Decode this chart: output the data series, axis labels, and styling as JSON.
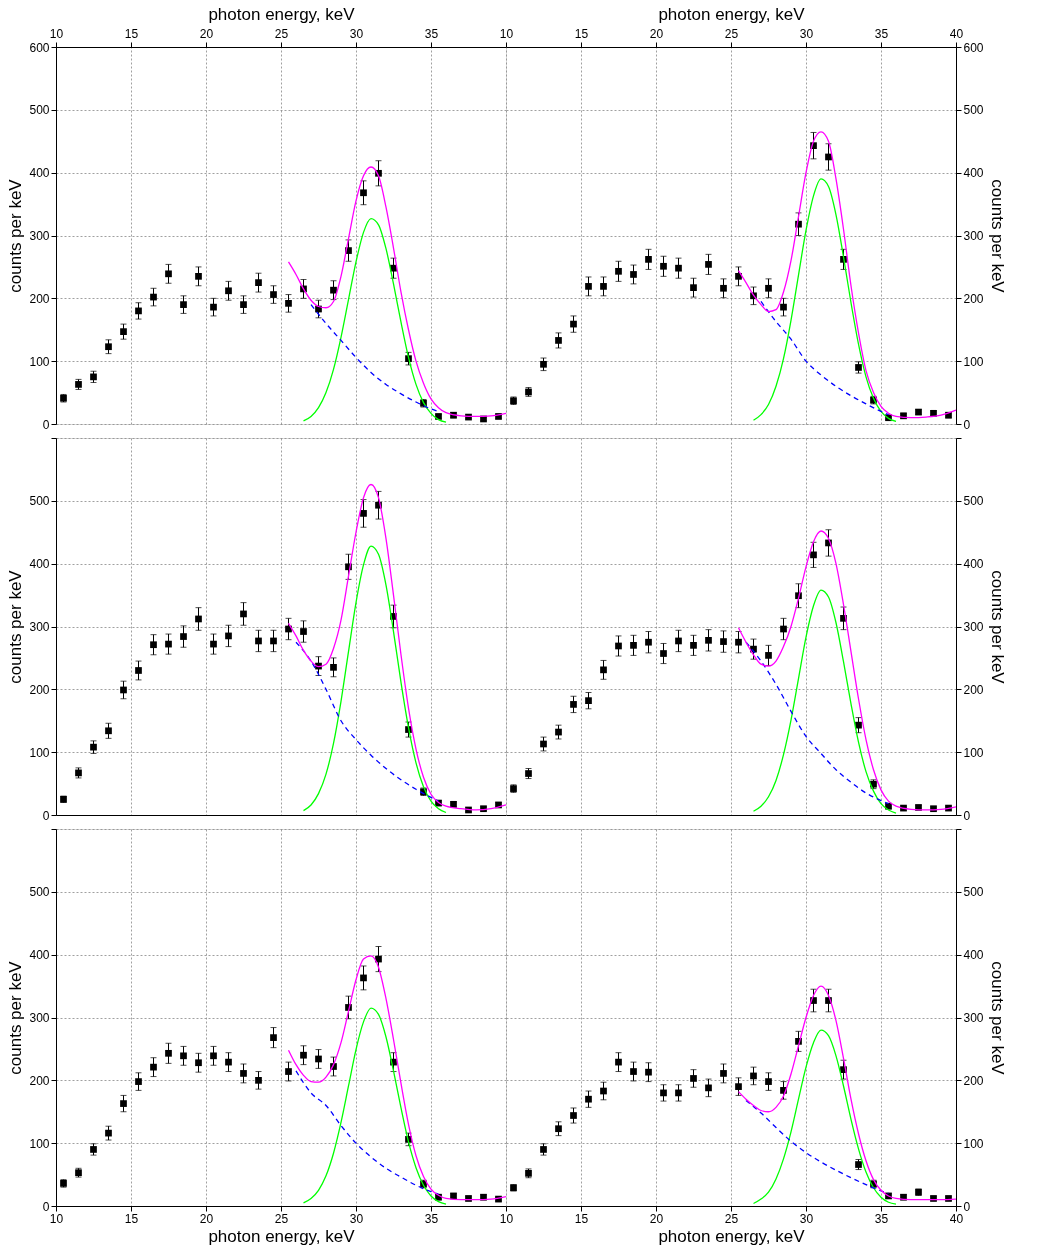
{
  "chart_data": [
    {
      "type": "scatter",
      "x": [
        10.5,
        11.5,
        12.5,
        13.5,
        14.5,
        15.5,
        16.5,
        17.5,
        18.5,
        19.5,
        20.5,
        21.5,
        22.5,
        23.5,
        24.5,
        25.5,
        26.5,
        27.5,
        28.5,
        29.5,
        30.5,
        31.5,
        32.5,
        33.5,
        34.5,
        35.5,
        36.5,
        37.5,
        38.5,
        39.5
      ],
      "xlim": [
        10,
        40
      ],
      "xticks": [
        10,
        15,
        20,
        25,
        30,
        35
      ],
      "xlabel": "photon energy, keV",
      "ylim": [
        0,
        600
      ],
      "yticks": [
        0,
        100,
        200,
        300,
        400,
        500,
        600
      ],
      "ylabel": "counts per keV",
      "grid": true,
      "series": [
        {
          "marker": "square",
          "color": "#000000",
          "values": [
            41,
            63,
            75,
            123,
            147,
            180,
            202,
            239,
            190,
            235,
            186,
            212,
            190,
            225,
            206,
            192,
            215,
            183,
            213,
            276,
            368,
            399,
            248,
            104,
            33,
            12,
            14,
            11,
            8,
            12
          ],
          "errors": [
            6,
            8,
            9,
            11,
            12,
            13,
            14,
            15,
            14,
            15,
            14,
            15,
            14,
            15,
            14,
            14,
            15,
            14,
            15,
            17,
            19,
            20,
            16,
            10,
            6,
            3,
            4,
            3,
            3,
            3
          ]
        },
        {
          "type": "line",
          "color": "#00ff00",
          "x": [
            26.5,
            27,
            27.5,
            28,
            28.5,
            29,
            29.5,
            30,
            30.5,
            31,
            31.5,
            32,
            32.5,
            33,
            33.5,
            34,
            34.5,
            35,
            35.5,
            36
          ],
          "values": [
            5,
            12,
            26,
            50,
            87,
            138,
            198,
            258,
            305,
            327,
            317,
            279,
            223,
            162,
            106,
            63,
            34,
            17,
            7,
            3
          ]
        },
        {
          "type": "line",
          "color": "#0000ff",
          "line_style": "dashed",
          "x": [
            27,
            28,
            29,
            30,
            31,
            32,
            33,
            34,
            35,
            35.5
          ],
          "values": [
            190,
            160,
            133,
            106,
            82,
            63,
            48,
            35,
            24,
            20
          ]
        },
        {
          "type": "line",
          "color": "#ff00ff",
          "x": [
            25.5,
            26,
            26.5,
            27,
            27.5,
            28,
            28.5,
            29,
            29.5,
            30,
            30.5,
            31,
            31.5,
            32,
            32.5,
            33,
            33.5,
            34,
            34.5,
            35,
            35.5,
            36,
            37,
            38,
            39,
            40
          ],
          "values": [
            258,
            238,
            215,
            197,
            187,
            185,
            195,
            235,
            295,
            355,
            395,
            409,
            395,
            345,
            280,
            210,
            150,
            100,
            65,
            40,
            26,
            18,
            13,
            12,
            13,
            17
          ]
        }
      ]
    },
    {
      "type": "scatter",
      "x": [
        10.5,
        11.5,
        12.5,
        13.5,
        14.5,
        15.5,
        16.5,
        17.5,
        18.5,
        19.5,
        20.5,
        21.5,
        22.5,
        23.5,
        24.5,
        25.5,
        26.5,
        27.5,
        28.5,
        29.5,
        30.5,
        31.5,
        32.5,
        33.5,
        34.5,
        35.5,
        36.5,
        37.5,
        38.5,
        39.5
      ],
      "xlim": [
        10,
        40
      ],
      "xticks": [
        10,
        15,
        20,
        25,
        30,
        35,
        40
      ],
      "xlabel": "photon energy, keV",
      "y2lim": [
        0,
        600
      ],
      "y2ticks": [
        0,
        100,
        200,
        300,
        400,
        500,
        600
      ],
      "y2label": "counts per keV",
      "grid": true,
      "series": [
        {
          "axis": "y2",
          "marker": "square",
          "color": "#000000",
          "values": [
            37,
            51,
            95,
            133,
            159,
            219,
            219,
            243,
            238,
            262,
            251,
            248,
            217,
            254,
            216,
            235,
            204,
            216,
            186,
            318,
            443,
            425,
            262,
            90,
            38,
            10,
            13,
            19,
            17,
            14
          ],
          "errors": [
            6,
            7,
            10,
            12,
            13,
            15,
            15,
            16,
            15,
            16,
            16,
            16,
            15,
            16,
            15,
            15,
            14,
            15,
            14,
            18,
            21,
            21,
            16,
            9,
            6,
            3,
            4,
            4,
            4,
            4
          ]
        },
        {
          "type": "line",
          "axis": "y2",
          "color": "#00ff00",
          "x": [
            26.5,
            27,
            27.5,
            28,
            28.5,
            29,
            29.5,
            30,
            30.5,
            31,
            31.5,
            32,
            32.5,
            33,
            33.5,
            34,
            34.5,
            35,
            35.5,
            36
          ],
          "values": [
            6,
            15,
            31,
            60,
            104,
            165,
            237,
            308,
            363,
            390,
            378,
            333,
            266,
            193,
            127,
            75,
            41,
            20,
            9,
            4
          ]
        },
        {
          "type": "line",
          "axis": "y2",
          "color": "#0000ff",
          "line_style": "dashed",
          "x": [
            27,
            28,
            29,
            30,
            31,
            32,
            33,
            34,
            35,
            35.5
          ],
          "values": [
            195,
            163,
            135,
            100,
            78,
            60,
            45,
            32,
            20,
            15
          ]
        },
        {
          "type": "line",
          "axis": "y2",
          "color": "#ff00ff",
          "x": [
            25.5,
            26,
            26.5,
            27,
            27.5,
            28,
            28.5,
            29,
            29.5,
            30,
            30.5,
            31,
            31.5,
            32,
            32.5,
            33,
            33.5,
            34,
            34.5,
            35,
            35.5,
            36,
            37,
            38,
            39,
            40
          ],
          "values": [
            244,
            225,
            205,
            190,
            179,
            182,
            210,
            260,
            330,
            400,
            450,
            465,
            450,
            390,
            310,
            220,
            145,
            85,
            50,
            28,
            17,
            12,
            10,
            11,
            14,
            22
          ]
        }
      ]
    },
    {
      "type": "scatter",
      "x": [
        10.5,
        11.5,
        12.5,
        13.5,
        14.5,
        15.5,
        16.5,
        17.5,
        18.5,
        19.5,
        20.5,
        21.5,
        22.5,
        23.5,
        24.5,
        25.5,
        26.5,
        27.5,
        28.5,
        29.5,
        30.5,
        31.5,
        32.5,
        33.5,
        34.5,
        35.5,
        36.5,
        37.5,
        38.5,
        39.5
      ],
      "xlim": [
        10,
        40
      ],
      "xticks": [
        10,
        15,
        20,
        25,
        30,
        35
      ],
      "ylim": [
        0,
        600
      ],
      "yticks": [
        0,
        100,
        200,
        300,
        400,
        500,
        {
          "value": 600,
          "label": null
        }
      ],
      "ylabel": "counts per keV",
      "grid": true,
      "tick_labels": "y",
      "series": [
        {
          "marker": "square",
          "color": "#000000",
          "values": [
            25,
            67,
            108,
            134,
            199,
            230,
            271,
            272,
            284,
            312,
            272,
            285,
            320,
            277,
            277,
            296,
            292,
            237,
            235,
            395,
            480,
            493,
            316,
            136,
            37,
            19,
            17,
            8,
            10,
            16
          ],
          "errors": [
            5,
            8,
            10,
            12,
            14,
            15,
            16,
            16,
            17,
            18,
            16,
            17,
            18,
            17,
            17,
            17,
            17,
            15,
            15,
            20,
            22,
            22,
            18,
            12,
            6,
            4,
            4,
            3,
            3,
            4
          ]
        },
        {
          "type": "line",
          "color": "#00ff00",
          "x": [
            26.5,
            27,
            27.5,
            28,
            28.5,
            29,
            29.5,
            30,
            30.5,
            31,
            31.5,
            32,
            32.5,
            33,
            33.5,
            34,
            34.5,
            35,
            35.5,
            36
          ],
          "values": [
            7,
            16,
            34,
            65,
            114,
            181,
            260,
            338,
            398,
            428,
            415,
            366,
            292,
            211,
            139,
            83,
            45,
            22,
            10,
            4
          ]
        },
        {
          "type": "line",
          "color": "#0000ff",
          "line_style": "dashed",
          "x": [
            26,
            27,
            28,
            29,
            30,
            31,
            32,
            33,
            34,
            35,
            35.5
          ],
          "values": [
            275,
            245,
            200,
            150,
            120,
            95,
            74,
            56,
            41,
            28,
            22
          ]
        },
        {
          "type": "line",
          "color": "#ff00ff",
          "x": [
            25.5,
            26,
            26.5,
            27,
            27.5,
            28,
            28.5,
            29,
            29.5,
            30,
            30.5,
            31,
            31.5,
            32,
            32.5,
            33,
            33.5,
            34,
            34.5,
            35,
            35.5,
            36,
            37,
            38,
            39,
            40
          ],
          "values": [
            305,
            285,
            262,
            245,
            236,
            240,
            265,
            310,
            380,
            450,
            505,
            526,
            505,
            440,
            350,
            255,
            170,
            105,
            60,
            33,
            20,
            14,
            10,
            8,
            10,
            16
          ]
        }
      ]
    },
    {
      "type": "scatter",
      "x": [
        10.5,
        11.5,
        12.5,
        13.5,
        14.5,
        15.5,
        16.5,
        17.5,
        18.5,
        19.5,
        20.5,
        21.5,
        22.5,
        23.5,
        24.5,
        25.5,
        26.5,
        27.5,
        28.5,
        29.5,
        30.5,
        31.5,
        32.5,
        33.5,
        34.5,
        35.5,
        36.5,
        37.5,
        38.5,
        39.5
      ],
      "xlim": [
        10,
        40
      ],
      "xticks": [
        10,
        15,
        20,
        25,
        30,
        35,
        40
      ],
      "y2lim": [
        0,
        600
      ],
      "y2ticks": [
        0,
        100,
        200,
        300,
        400,
        500,
        {
          "value": 600,
          "label": null
        }
      ],
      "y2label": "counts per keV",
      "grid": true,
      "tick_labels": "y",
      "series": [
        {
          "axis": "y2",
          "marker": "square",
          "color": "#000000",
          "values": [
            42,
            66,
            113,
            132,
            176,
            182,
            231,
            269,
            270,
            275,
            257,
            277,
            270,
            278,
            276,
            275,
            264,
            254,
            296,
            349,
            414,
            433,
            313,
            143,
            49,
            14,
            11,
            12,
            10,
            11
          ],
          "errors": [
            6,
            8,
            11,
            11,
            13,
            13,
            15,
            16,
            16,
            17,
            16,
            17,
            16,
            17,
            17,
            17,
            16,
            16,
            17,
            19,
            20,
            21,
            18,
            12,
            7,
            4,
            3,
            3,
            3,
            3
          ]
        },
        {
          "type": "line",
          "axis": "y2",
          "color": "#00ff00",
          "x": [
            26.5,
            27,
            27.5,
            28,
            28.5,
            29,
            29.5,
            30,
            30.5,
            31,
            31.5,
            32,
            32.5,
            33,
            33.5,
            34,
            34.5,
            35,
            35.5,
            36
          ],
          "values": [
            6,
            14,
            29,
            55,
            96,
            151,
            217,
            283,
            333,
            358,
            347,
            306,
            244,
            177,
            116,
            69,
            38,
            18,
            8,
            3
          ]
        },
        {
          "type": "line",
          "axis": "y2",
          "color": "#0000ff",
          "line_style": "dashed",
          "x": [
            26,
            27,
            28,
            29,
            30,
            31,
            32,
            33,
            34,
            35,
            35.5
          ],
          "values": [
            275,
            245,
            208,
            165,
            125,
            98,
            72,
            52,
            35,
            23,
            18
          ]
        },
        {
          "type": "line",
          "axis": "y2",
          "color": "#ff00ff",
          "x": [
            25.5,
            26,
            26.5,
            27,
            27.5,
            28,
            28.5,
            29,
            29.5,
            30,
            30.5,
            31,
            31.5,
            32,
            32.5,
            33,
            33.5,
            34,
            34.5,
            35,
            35.5,
            36,
            37,
            38,
            39,
            40
          ],
          "values": [
            298,
            275,
            255,
            240,
            237,
            245,
            268,
            300,
            345,
            395,
            435,
            452,
            440,
            400,
            335,
            260,
            185,
            120,
            72,
            40,
            22,
            14,
            9,
            8,
            9,
            13
          ]
        }
      ]
    },
    {
      "type": "scatter",
      "x": [
        10.5,
        11.5,
        12.5,
        13.5,
        14.5,
        15.5,
        16.5,
        17.5,
        18.5,
        19.5,
        20.5,
        21.5,
        22.5,
        23.5,
        24.5,
        25.5,
        26.5,
        27.5,
        28.5,
        29.5,
        30.5,
        31.5,
        32.5,
        33.5,
        34.5,
        35.5,
        36.5,
        37.5,
        38.5,
        39.5
      ],
      "xlim": [
        10,
        40
      ],
      "xticks": [
        10,
        15,
        20,
        25,
        30,
        35
      ],
      "xlabel": "photon energy, keV",
      "ylim": [
        0,
        600
      ],
      "yticks": [
        0,
        100,
        200,
        300,
        400,
        500,
        {
          "value": 600,
          "label": null
        }
      ],
      "ylabel": "counts per keV",
      "grid": true,
      "series": [
        {
          "marker": "square",
          "color": "#000000",
          "values": [
            36,
            53,
            90,
            116,
            163,
            198,
            221,
            243,
            239,
            228,
            239,
            229,
            211,
            200,
            268,
            214,
            240,
            234,
            222,
            316,
            363,
            393,
            229,
            106,
            35,
            14,
            16,
            12,
            14,
            11
          ],
          "errors": [
            6,
            7,
            9,
            11,
            13,
            14,
            15,
            16,
            15,
            15,
            15,
            15,
            15,
            14,
            16,
            15,
            15,
            15,
            15,
            18,
            19,
            20,
            15,
            10,
            6,
            4,
            4,
            3,
            4,
            3
          ]
        },
        {
          "type": "line",
          "color": "#00ff00",
          "x": [
            26.5,
            27,
            27.5,
            28,
            28.5,
            29,
            29.5,
            30,
            30.5,
            31,
            31.5,
            32,
            32.5,
            33,
            33.5,
            34,
            34.5,
            35,
            35.5,
            36
          ],
          "values": [
            5,
            12,
            25,
            48,
            84,
            133,
            191,
            249,
            293,
            315,
            305,
            269,
            215,
            156,
            102,
            61,
            33,
            16,
            7,
            3
          ]
        },
        {
          "type": "line",
          "color": "#0000ff",
          "line_style": "dashed",
          "x": [
            26,
            27,
            28,
            29,
            30,
            31,
            32,
            33,
            34,
            35,
            35.5
          ],
          "values": [
            215,
            180,
            160,
            128,
            100,
            78,
            60,
            46,
            33,
            23,
            19
          ]
        },
        {
          "type": "line",
          "color": "#ff00ff",
          "x": [
            25.5,
            26,
            26.5,
            27,
            27.5,
            28,
            28.5,
            29,
            29.5,
            30,
            30.5,
            31,
            31.5,
            32,
            32.5,
            33,
            33.5,
            34,
            34.5,
            35,
            35.5,
            36,
            37,
            38,
            39,
            40
          ],
          "values": [
            248,
            225,
            208,
            198,
            197,
            205,
            225,
            260,
            310,
            360,
            393,
            398,
            380,
            330,
            265,
            195,
            130,
            80,
            47,
            27,
            17,
            12,
            10,
            10,
            11,
            15
          ]
        }
      ]
    },
    {
      "type": "scatter",
      "x": [
        10.5,
        11.5,
        12.5,
        13.5,
        14.5,
        15.5,
        16.5,
        17.5,
        18.5,
        19.5,
        20.5,
        21.5,
        22.5,
        23.5,
        24.5,
        25.5,
        26.5,
        27.5,
        28.5,
        29.5,
        30.5,
        31.5,
        32.5,
        33.5,
        34.5,
        35.5,
        36.5,
        37.5,
        38.5,
        39.5
      ],
      "xlim": [
        10,
        40
      ],
      "xticks": [
        10,
        15,
        20,
        25,
        30,
        35,
        40
      ],
      "xlabel": "photon energy, keV",
      "y2lim": [
        0,
        600
      ],
      "y2ticks": [
        0,
        100,
        200,
        300,
        400,
        500,
        {
          "value": 600,
          "label": null
        }
      ],
      "y2label": "counts per keV",
      "grid": true,
      "series": [
        {
          "axis": "y2",
          "marker": "square",
          "color": "#000000",
          "values": [
            29,
            52,
            90,
            123,
            144,
            170,
            183,
            229,
            214,
            213,
            180,
            180,
            203,
            188,
            211,
            190,
            207,
            198,
            184,
            262,
            327,
            327,
            217,
            66,
            35,
            16,
            14,
            22,
            12,
            12
          ],
          "errors": [
            5,
            7,
            9,
            11,
            12,
            13,
            14,
            15,
            15,
            15,
            13,
            13,
            14,
            14,
            15,
            14,
            14,
            14,
            14,
            16,
            18,
            18,
            15,
            8,
            6,
            4,
            4,
            5,
            3,
            3
          ]
        },
        {
          "type": "line",
          "axis": "y2",
          "color": "#00ff00",
          "x": [
            26.5,
            27,
            27.5,
            28,
            28.5,
            29,
            29.5,
            30,
            30.5,
            31,
            31.5,
            32,
            32.5,
            33,
            33.5,
            34,
            34.5,
            35,
            35.5,
            36
          ],
          "values": [
            4,
            11,
            22,
            43,
            75,
            118,
            170,
            221,
            260,
            280,
            271,
            239,
            191,
            138,
            91,
            54,
            29,
            14,
            6,
            3
          ]
        },
        {
          "type": "line",
          "axis": "y2",
          "color": "#0000ff",
          "line_style": "dashed",
          "x": [
            26,
            27,
            28,
            29,
            30,
            31,
            32,
            33,
            34,
            35,
            35.5
          ],
          "values": [
            168,
            148,
            125,
            103,
            85,
            70,
            57,
            45,
            34,
            24,
            20
          ]
        },
        {
          "type": "line",
          "axis": "y2",
          "color": "#ff00ff",
          "x": [
            25.5,
            26,
            26.5,
            27,
            27.5,
            28,
            28.5,
            29,
            29.5,
            30,
            30.5,
            31,
            31.5,
            32,
            32.5,
            33,
            33.5,
            34,
            34.5,
            35,
            35.5,
            36,
            37,
            38,
            39,
            40
          ],
          "values": [
            182,
            170,
            160,
            152,
            150,
            157,
            175,
            210,
            255,
            300,
            335,
            350,
            335,
            295,
            235,
            170,
            115,
            72,
            42,
            25,
            16,
            12,
            10,
            10,
            10,
            11
          ]
        }
      ]
    }
  ]
}
